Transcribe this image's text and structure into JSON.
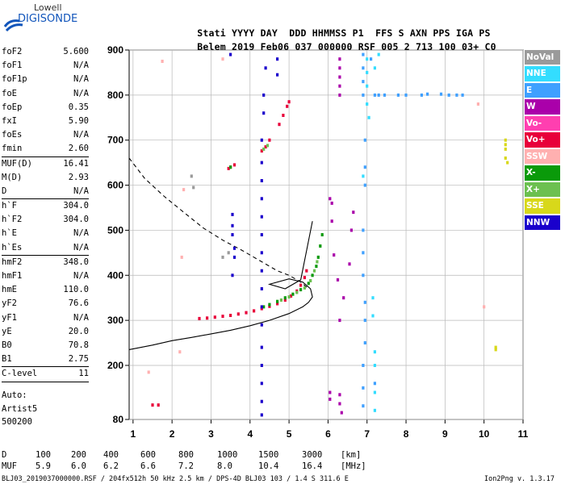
{
  "logo": {
    "line1": "Lowell",
    "line2": "DIGISONDE"
  },
  "header": {
    "labels": [
      "Stati",
      "YYYY",
      "DAY",
      "DDD",
      "HHMMSS",
      "P1",
      "FFS",
      "S",
      "AXN",
      "PPS",
      "IGA",
      "PS"
    ],
    "values": [
      "Belem",
      "2019",
      "Feb06",
      "037",
      "000000",
      "RSF",
      "005",
      "2",
      "713",
      "100",
      "03+",
      "C0"
    ]
  },
  "params": [
    {
      "name": "foF2",
      "value": "5.600"
    },
    {
      "name": "foF1",
      "value": "N/A"
    },
    {
      "name": "foF1p",
      "value": "N/A"
    },
    {
      "name": "foE",
      "value": "N/A"
    },
    {
      "name": "foEp",
      "value": "0.35"
    },
    {
      "name": "fxI",
      "value": "5.90"
    },
    {
      "name": "foEs",
      "value": "N/A"
    },
    {
      "name": "fmin",
      "value": "2.60",
      "divider_after": true
    },
    {
      "name": "MUF(D)",
      "value": "16.41"
    },
    {
      "name": "M(D)",
      "value": "2.93"
    },
    {
      "name": "D",
      "value": "N/A",
      "divider_after": true
    },
    {
      "name": "h`F",
      "value": "304.0"
    },
    {
      "name": "h`F2",
      "value": "304.0"
    },
    {
      "name": "h`E",
      "value": "N/A"
    },
    {
      "name": "h`Es",
      "value": "N/A",
      "divider_after": true
    },
    {
      "name": "hmF2",
      "value": "348.0"
    },
    {
      "name": "hmF1",
      "value": "N/A"
    },
    {
      "name": "hmE",
      "value": "110.0"
    },
    {
      "name": "yF2",
      "value": "76.6"
    },
    {
      "name": "yF1",
      "value": "N/A"
    },
    {
      "name": "yE",
      "value": "20.0"
    },
    {
      "name": "B0",
      "value": "70.8"
    },
    {
      "name": "B1",
      "value": "2.75",
      "divider_after": true
    },
    {
      "name": "C-level",
      "value": "11",
      "divider_after": true
    }
  ],
  "auto": {
    "label": "Auto:",
    "artist": "Artist5",
    "version": "500200"
  },
  "legend": [
    {
      "label": "NoVal",
      "color": "#9a9a9a"
    },
    {
      "label": "NNE",
      "color": "#33ddff"
    },
    {
      "label": "E",
      "color": "#3fa0ff"
    },
    {
      "label": "W",
      "color": "#aa00aa"
    },
    {
      "label": "Vo-",
      "color": "#ff3fb0"
    },
    {
      "label": "Vo+",
      "color": "#e8003a"
    },
    {
      "label": "SSW",
      "color": "#ffb0b0"
    },
    {
      "label": "X-",
      "color": "#0a9a0a"
    },
    {
      "label": "X+",
      "color": "#6cc050"
    },
    {
      "label": "SSE",
      "color": "#d8d81a"
    },
    {
      "label": "NNW",
      "color": "#1a00cc"
    }
  ],
  "footer": {
    "d_label": "D",
    "d_values": [
      "100",
      "200",
      "400",
      "600",
      "800",
      "1000",
      "1500",
      "3000",
      "[km]"
    ],
    "muf_label": "MUF",
    "muf_values": [
      "5.9",
      "6.0",
      "6.2",
      "6.6",
      "7.2",
      "8.0",
      "10.4",
      "16.4",
      "[MHz]"
    ],
    "filename": "BLJ03_2019037000000.RSF / 204fx512h 50 kHz 2.5 km / DPS-4D BLJ03 103 / 1.4 S 311.6 E",
    "version": "Ion2Png v. 1.3.17"
  },
  "chart_data": {
    "type": "scatter",
    "title": "",
    "xlabel": "",
    "ylabel": "",
    "xlim": [
      0.9,
      11.0
    ],
    "ylim": [
      80,
      900
    ],
    "x_ticks": [
      1,
      2,
      3,
      4,
      5,
      6,
      7,
      8,
      9,
      10,
      11
    ],
    "y_ticks": [
      80,
      200,
      300,
      400,
      500,
      600,
      700,
      800,
      900
    ],
    "legend_position": "right",
    "grid": true,
    "series": [
      {
        "name": "Vo+",
        "color": "#e8003a",
        "points": [
          [
            2.7,
            304
          ],
          [
            2.9,
            305
          ],
          [
            3.1,
            307
          ],
          [
            3.3,
            309
          ],
          [
            3.5,
            311
          ],
          [
            3.7,
            314
          ],
          [
            3.9,
            317
          ],
          [
            4.1,
            321
          ],
          [
            4.3,
            326
          ],
          [
            4.5,
            331
          ],
          [
            4.7,
            337
          ],
          [
            4.9,
            345
          ],
          [
            5.05,
            354
          ],
          [
            5.2,
            365
          ],
          [
            5.3,
            378
          ],
          [
            5.4,
            395
          ],
          [
            5.45,
            410
          ],
          [
            3.45,
            637
          ],
          [
            3.5,
            640
          ],
          [
            3.6,
            645
          ],
          [
            4.3,
            676
          ],
          [
            4.4,
            685
          ],
          [
            4.5,
            700
          ],
          [
            4.75,
            735
          ],
          [
            4.85,
            755
          ],
          [
            4.95,
            775
          ],
          [
            5.0,
            785
          ],
          [
            1.5,
            112
          ],
          [
            1.65,
            112
          ]
        ]
      },
      {
        "name": "X-",
        "color": "#0a9a0a",
        "points": [
          [
            4.35,
            330
          ],
          [
            4.5,
            335
          ],
          [
            4.7,
            342
          ],
          [
            4.9,
            350
          ],
          [
            5.1,
            358
          ],
          [
            5.3,
            368
          ],
          [
            5.5,
            382
          ],
          [
            5.6,
            400
          ],
          [
            5.7,
            420
          ],
          [
            5.75,
            440
          ],
          [
            5.8,
            465
          ],
          [
            5.85,
            490
          ],
          [
            3.5,
            640
          ]
        ]
      },
      {
        "name": "X+",
        "color": "#6cc050",
        "points": [
          [
            4.8,
            345
          ],
          [
            5.0,
            352
          ],
          [
            5.2,
            362
          ],
          [
            5.4,
            372
          ],
          [
            5.55,
            388
          ],
          [
            5.65,
            410
          ],
          [
            5.72,
            430
          ],
          [
            4.35,
            680
          ],
          [
            4.45,
            688
          ]
        ]
      },
      {
        "name": "NNW",
        "color": "#1a00cc",
        "points": [
          [
            3.55,
            490
          ],
          [
            3.55,
            510
          ],
          [
            3.55,
            535
          ],
          [
            3.6,
            460
          ],
          [
            3.6,
            440
          ],
          [
            3.55,
            400
          ],
          [
            3.5,
            890
          ],
          [
            4.3,
            90
          ],
          [
            4.3,
            120
          ],
          [
            4.3,
            160
          ],
          [
            4.3,
            200
          ],
          [
            4.3,
            240
          ],
          [
            4.3,
            290
          ],
          [
            4.3,
            330
          ],
          [
            4.3,
            370
          ],
          [
            4.3,
            410
          ],
          [
            4.3,
            450
          ],
          [
            4.3,
            490
          ],
          [
            4.3,
            530
          ],
          [
            4.3,
            570
          ],
          [
            4.3,
            610
          ],
          [
            4.3,
            650
          ],
          [
            4.3,
            700
          ],
          [
            4.35,
            760
          ],
          [
            4.35,
            800
          ],
          [
            4.4,
            860
          ],
          [
            4.7,
            880
          ],
          [
            4.7,
            845
          ]
        ]
      },
      {
        "name": "W",
        "color": "#aa00aa",
        "points": [
          [
            6.3,
            880
          ],
          [
            6.3,
            860
          ],
          [
            6.3,
            840
          ],
          [
            6.3,
            820
          ],
          [
            6.3,
            800
          ],
          [
            6.05,
            140
          ],
          [
            6.05,
            125
          ],
          [
            6.3,
            135
          ],
          [
            6.3,
            115
          ],
          [
            6.35,
            95
          ],
          [
            6.1,
            560
          ],
          [
            6.1,
            520
          ],
          [
            6.15,
            445
          ],
          [
            6.25,
            390
          ],
          [
            6.4,
            350
          ],
          [
            6.3,
            300
          ],
          [
            6.55,
            425
          ],
          [
            6.6,
            500
          ],
          [
            6.65,
            540
          ],
          [
            6.05,
            570
          ]
        ]
      },
      {
        "name": "E",
        "color": "#3fa0ff",
        "points": [
          [
            6.9,
            890
          ],
          [
            6.9,
            860
          ],
          [
            6.9,
            830
          ],
          [
            6.9,
            800
          ],
          [
            6.95,
            700
          ],
          [
            6.95,
            640
          ],
          [
            6.95,
            600
          ],
          [
            6.9,
            500
          ],
          [
            6.9,
            450
          ],
          [
            6.9,
            400
          ],
          [
            6.95,
            340
          ],
          [
            6.95,
            300
          ],
          [
            6.95,
            250
          ],
          [
            6.9,
            200
          ],
          [
            6.9,
            150
          ],
          [
            6.9,
            110
          ],
          [
            7.2,
            800
          ],
          [
            7.3,
            800
          ],
          [
            7.45,
            800
          ],
          [
            7.8,
            800
          ],
          [
            8.0,
            800
          ],
          [
            9.1,
            800
          ],
          [
            9.3,
            800
          ],
          [
            9.45,
            800
          ],
          [
            8.4,
            800
          ],
          [
            8.55,
            802
          ],
          [
            8.9,
            802
          ],
          [
            7.1,
            880
          ],
          [
            7.2,
            160
          ]
        ]
      },
      {
        "name": "NNE",
        "color": "#33ddff",
        "points": [
          [
            7.0,
            880
          ],
          [
            7.0,
            850
          ],
          [
            7.0,
            820
          ],
          [
            7.0,
            780
          ],
          [
            7.05,
            750
          ],
          [
            6.9,
            620
          ],
          [
            7.2,
            860
          ],
          [
            7.3,
            890
          ],
          [
            7.2,
            230
          ],
          [
            7.2,
            200
          ],
          [
            7.2,
            140
          ],
          [
            7.2,
            100
          ],
          [
            7.15,
            310
          ],
          [
            7.15,
            350
          ]
        ]
      },
      {
        "name": "SSE",
        "color": "#d8d81a",
        "points": [
          [
            10.55,
            700
          ],
          [
            10.55,
            690
          ],
          [
            10.55,
            680
          ],
          [
            10.55,
            660
          ],
          [
            10.3,
            235
          ],
          [
            10.3,
            240
          ],
          [
            10.6,
            650
          ]
        ]
      },
      {
        "name": "SSW",
        "color": "#ffb0b0",
        "points": [
          [
            1.4,
            185
          ],
          [
            1.75,
            875
          ],
          [
            2.25,
            440
          ],
          [
            2.3,
            590
          ],
          [
            2.2,
            230
          ],
          [
            3.3,
            880
          ],
          [
            10.0,
            330
          ],
          [
            9.85,
            780
          ]
        ]
      },
      {
        "name": "NoVal",
        "color": "#9a9a9a",
        "points": [
          [
            2.55,
            595
          ],
          [
            2.5,
            620
          ],
          [
            3.45,
            450
          ],
          [
            3.3,
            440
          ]
        ]
      }
    ],
    "lines": [
      {
        "name": "profile-solid",
        "style": "solid",
        "points": [
          [
            0.9,
            235
          ],
          [
            1.5,
            245
          ],
          [
            2.0,
            255
          ],
          [
            2.5,
            262
          ],
          [
            3.0,
            270
          ],
          [
            3.5,
            278
          ],
          [
            4.0,
            288
          ],
          [
            4.5,
            300
          ],
          [
            5.0,
            315
          ],
          [
            5.35,
            330
          ],
          [
            5.5,
            340
          ],
          [
            5.6,
            352
          ],
          [
            5.55,
            370
          ],
          [
            5.35,
            385
          ],
          [
            5.0,
            392
          ],
          [
            4.5,
            380
          ],
          [
            4.9,
            370
          ],
          [
            5.3,
            390
          ],
          [
            5.6,
            520
          ]
        ]
      },
      {
        "name": "profile-dashed",
        "style": "dashed",
        "points": [
          [
            0.9,
            660
          ],
          [
            1.3,
            615
          ],
          [
            1.8,
            575
          ],
          [
            2.3,
            540
          ],
          [
            2.8,
            505
          ],
          [
            3.3,
            478
          ],
          [
            3.8,
            455
          ],
          [
            4.3,
            430
          ],
          [
            4.7,
            410
          ],
          [
            5.0,
            400
          ],
          [
            5.3,
            385
          ],
          [
            5.5,
            370
          ]
        ]
      }
    ]
  }
}
